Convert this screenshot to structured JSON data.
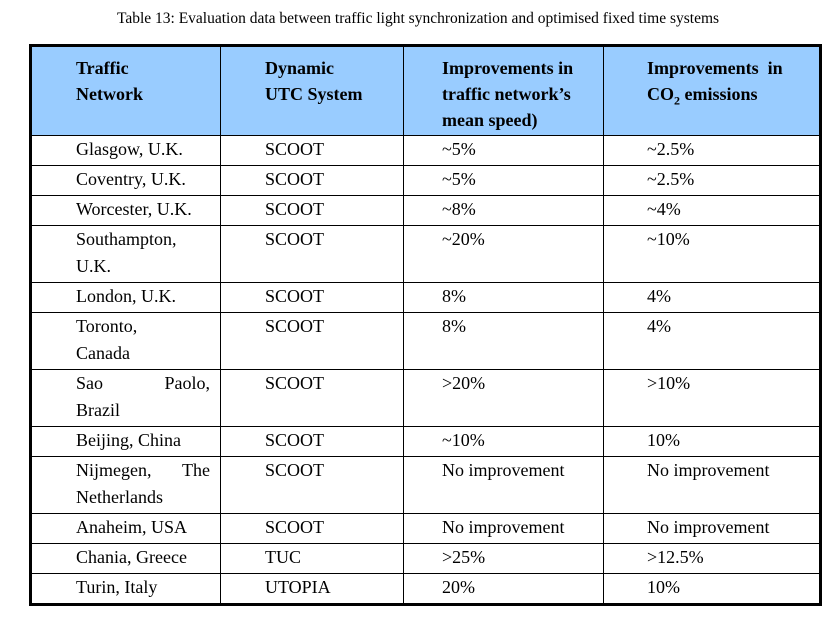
{
  "caption": "Table 13: Evaluation data between traffic light synchronization and optimised fixed time systems",
  "header": {
    "col1": [
      "Traffic",
      "Network"
    ],
    "col2": [
      "Dynamic",
      "UTC System"
    ],
    "col3": [
      "Improvements in",
      "traffic network’s",
      "mean speed)"
    ],
    "col4_line1": "Improvements  in",
    "col4_line2_pre": "CO",
    "col4_line2_sub": "2",
    "col4_line2_post": " emissions"
  },
  "rows": [
    {
      "network": [
        "Glasgow, U.K."
      ],
      "system": "SCOOT",
      "speed": "~5%",
      "co2": "~2.5%"
    },
    {
      "network": [
        "Coventry, U.K."
      ],
      "system": "SCOOT",
      "speed": "~5%",
      "co2": "~2.5%"
    },
    {
      "network": [
        "Worcester, U.K."
      ],
      "system": "SCOOT",
      "speed": "~8%",
      "co2": "~4%"
    },
    {
      "network": [
        "Southampton,",
        "U.K."
      ],
      "system": "SCOOT",
      "speed": "~20%",
      "co2": "~10%"
    },
    {
      "network": [
        "London, U.K."
      ],
      "system": "SCOOT",
      "speed": "8%",
      "co2": "4%"
    },
    {
      "network": [
        "Toronto,",
        "Canada"
      ],
      "system": "SCOOT",
      "speed": "8%",
      "co2": "4%"
    },
    {
      "network": [
        "Sao Paolo,",
        "Brazil"
      ],
      "system": "SCOOT",
      "speed": ">20%",
      "co2": ">10%"
    },
    {
      "network": [
        "Beijing, China"
      ],
      "system": "SCOOT",
      "speed": "~10%",
      "co2": "10%"
    },
    {
      "network": [
        "Nijmegen, The",
        "Netherlands"
      ],
      "system": "SCOOT",
      "speed": "No improvement",
      "co2": "No improvement"
    },
    {
      "network": [
        "Anaheim, USA"
      ],
      "system": "SCOOT",
      "speed": "No improvement",
      "co2": "No improvement"
    },
    {
      "network": [
        "Chania, Greece"
      ],
      "system": "TUC",
      "speed": ">25%",
      "co2": ">12.5%"
    },
    {
      "network": [
        "Turin, Italy"
      ],
      "system": "UTOPIA",
      "speed": "20%",
      "co2": "10%"
    }
  ]
}
